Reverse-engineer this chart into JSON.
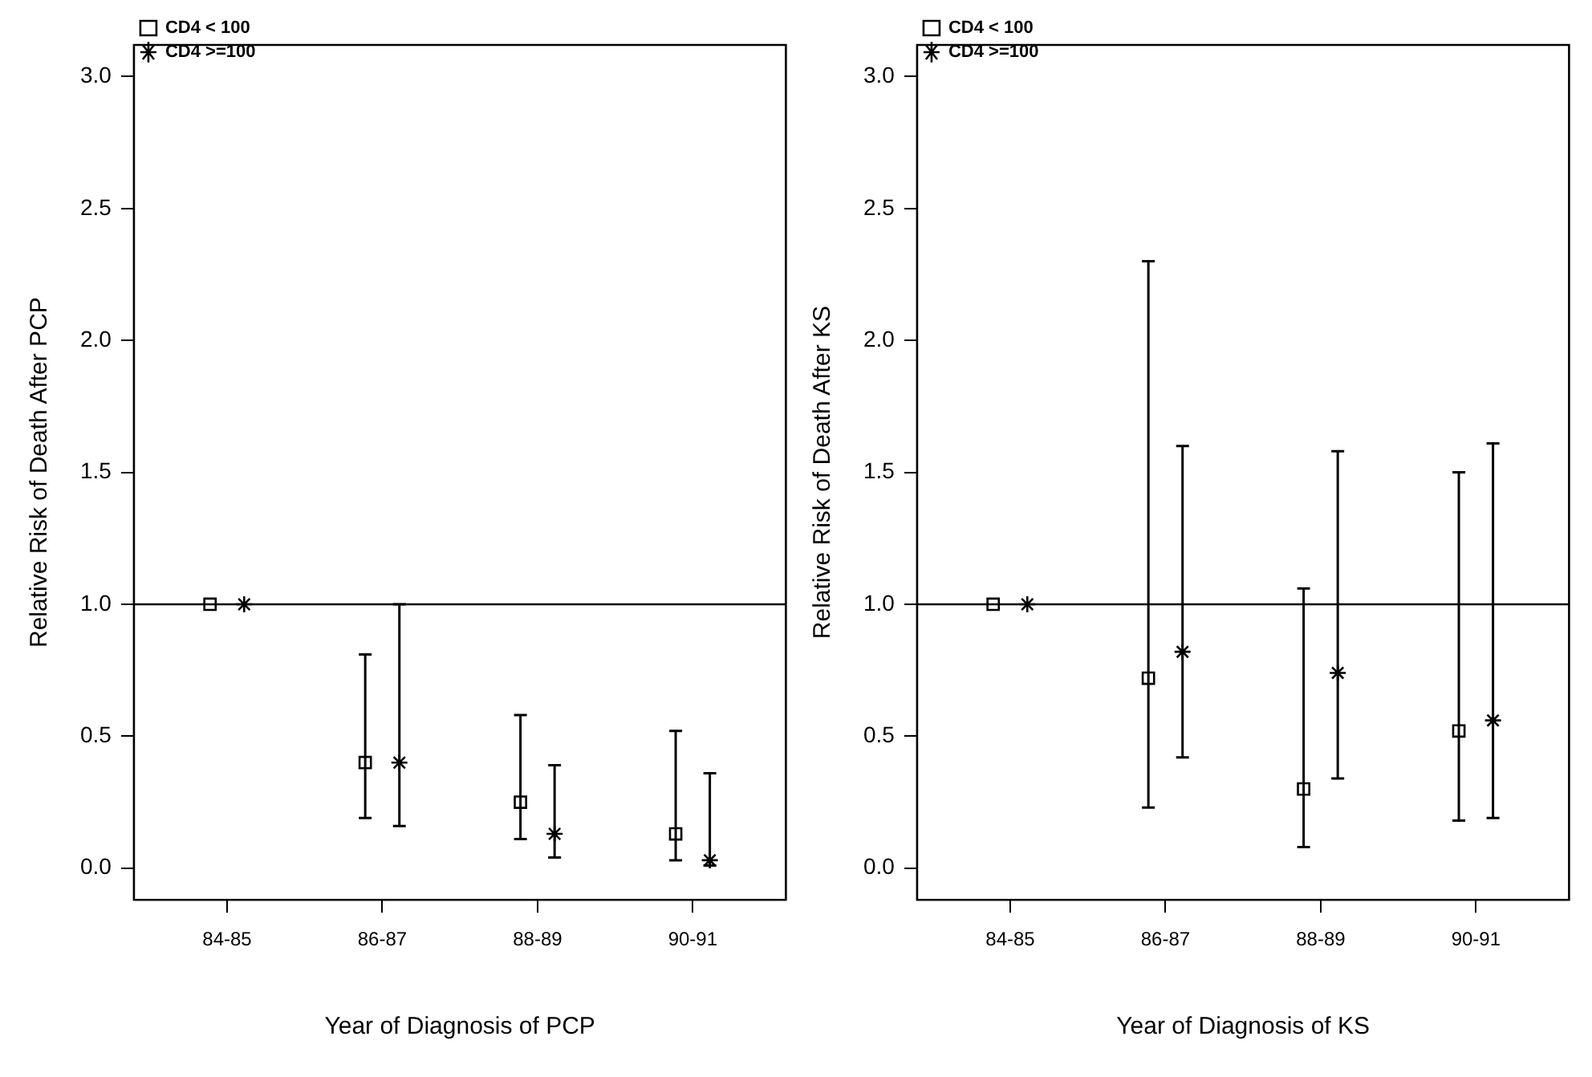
{
  "chart_data": [
    {
      "type": "scatter",
      "xlabel": "Year of Diagnosis of PCP",
      "ylabel": "Relative Risk of Death After PCP",
      "categories": [
        "84-85",
        "86-87",
        "88-89",
        "90-91"
      ],
      "series": [
        {
          "name": "CD4 < 100",
          "color": "#000000",
          "marker": "square",
          "values": [
            1.0,
            0.4,
            0.25,
            0.13
          ],
          "errors": [
            null,
            [
              0.19,
              0.81
            ],
            [
              0.11,
              0.58
            ],
            [
              0.03,
              0.52
            ]
          ]
        },
        {
          "name": "CD4 >=100",
          "color": "#000000",
          "marker": "cross",
          "values": [
            1.0,
            0.4,
            0.13,
            0.03
          ],
          "errors": [
            null,
            [
              0.16,
              1.0
            ],
            [
              0.04,
              0.39
            ],
            [
              0.01,
              0.36
            ]
          ]
        }
      ],
      "ylim": [
        -0.12,
        3.12
      ],
      "yticks": [
        {
          "value": 0,
          "label": "0.0"
        },
        {
          "value": 0.5,
          "label": "0.5"
        },
        {
          "value": 1,
          "label": "1.0"
        },
        {
          "value": 1.5,
          "label": "1.5"
        },
        {
          "value": 2,
          "label": "2.0"
        },
        {
          "value": 2.5,
          "label": "2.5"
        },
        {
          "value": 3,
          "label": "3.0"
        }
      ],
      "ref_lines": [
        {
          "axis": "y",
          "value": 1,
          "color": "#000000"
        }
      ],
      "legend": "top left",
      "grid": false
    },
    {
      "type": "scatter",
      "xlabel": "Year of Diagnosis of KS",
      "ylabel": "Relative Risk of Death After KS",
      "categories": [
        "84-85",
        "86-87",
        "88-89",
        "90-91"
      ],
      "series": [
        {
          "name": "CD4 < 100",
          "color": "#000000",
          "marker": "square",
          "values": [
            1.0,
            0.72,
            0.3,
            0.52
          ],
          "errors": [
            null,
            [
              0.23,
              2.3
            ],
            [
              0.08,
              1.06
            ],
            [
              0.18,
              1.5
            ]
          ]
        },
        {
          "name": "CD4 >=100",
          "color": "#000000",
          "marker": "cross",
          "values": [
            1.0,
            0.82,
            0.74,
            0.56
          ],
          "errors": [
            null,
            [
              0.42,
              1.6
            ],
            [
              0.34,
              1.58
            ],
            [
              0.19,
              1.61
            ]
          ]
        }
      ],
      "ylim": [
        -0.12,
        3.12
      ],
      "yticks": [
        {
          "value": 0,
          "label": "0.0"
        },
        {
          "value": 0.5,
          "label": "0.5"
        },
        {
          "value": 1,
          "label": "1.0"
        },
        {
          "value": 1.5,
          "label": "1.5"
        },
        {
          "value": 2,
          "label": "2.0"
        },
        {
          "value": 2.5,
          "label": "2.5"
        },
        {
          "value": 3,
          "label": "3.0"
        }
      ],
      "ref_lines": [
        {
          "axis": "y",
          "value": 1,
          "color": "#000000"
        }
      ],
      "legend": "top left",
      "grid": false
    }
  ]
}
